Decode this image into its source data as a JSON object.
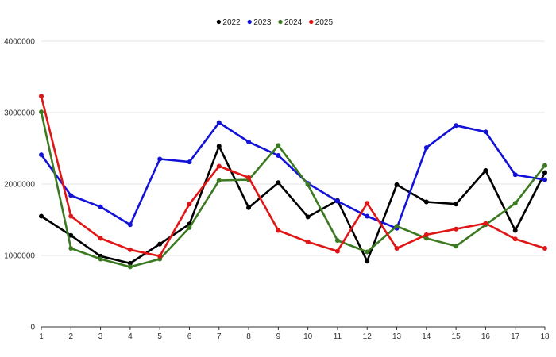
{
  "chart_data": {
    "type": "line",
    "title": "",
    "xlabel": "",
    "ylabel": "",
    "x": [
      1,
      2,
      3,
      4,
      5,
      6,
      7,
      8,
      9,
      10,
      11,
      12,
      13,
      14,
      15,
      16,
      17,
      18
    ],
    "x_tick_labels": [
      "1",
      "2",
      "3",
      "4",
      "5",
      "6",
      "7",
      "8",
      "9",
      "10",
      "11",
      "12",
      "13",
      "14",
      "15",
      "16",
      "17",
      "18"
    ],
    "ylim": [
      0,
      4000000
    ],
    "y_ticks": [
      0,
      1000000,
      2000000,
      3000000,
      4000000
    ],
    "y_tick_labels": [
      "0",
      "1000000",
      "2000000",
      "3000000",
      "4000000"
    ],
    "grid": "horizontal",
    "legend_position": "top",
    "series": [
      {
        "name": "2022",
        "color": "#000000",
        "values": [
          1550000,
          1280000,
          990000,
          890000,
          1160000,
          1440000,
          2530000,
          1670000,
          2020000,
          1540000,
          1770000,
          920000,
          1990000,
          1750000,
          1720000,
          2190000,
          1350000,
          2160000
        ]
      },
      {
        "name": "2023",
        "color": "#1212d8",
        "values": [
          2410000,
          1840000,
          1680000,
          1430000,
          2350000,
          2310000,
          2860000,
          2590000,
          2400000,
          2010000,
          1760000,
          1550000,
          1380000,
          2510000,
          2820000,
          2730000,
          2130000,
          2060000
        ]
      },
      {
        "name": "2024",
        "color": "#3c7a22",
        "values": [
          3010000,
          1100000,
          950000,
          840000,
          950000,
          1390000,
          2050000,
          2060000,
          2540000,
          1990000,
          1210000,
          1050000,
          1410000,
          1240000,
          1130000,
          1430000,
          1730000,
          2260000
        ]
      },
      {
        "name": "2025",
        "color": "#e01515",
        "values": [
          3230000,
          1550000,
          1240000,
          1080000,
          990000,
          1720000,
          2250000,
          2090000,
          1350000,
          1190000,
          1060000,
          1730000,
          1100000,
          1290000,
          1370000,
          1450000,
          1230000,
          1100000
        ]
      }
    ]
  }
}
